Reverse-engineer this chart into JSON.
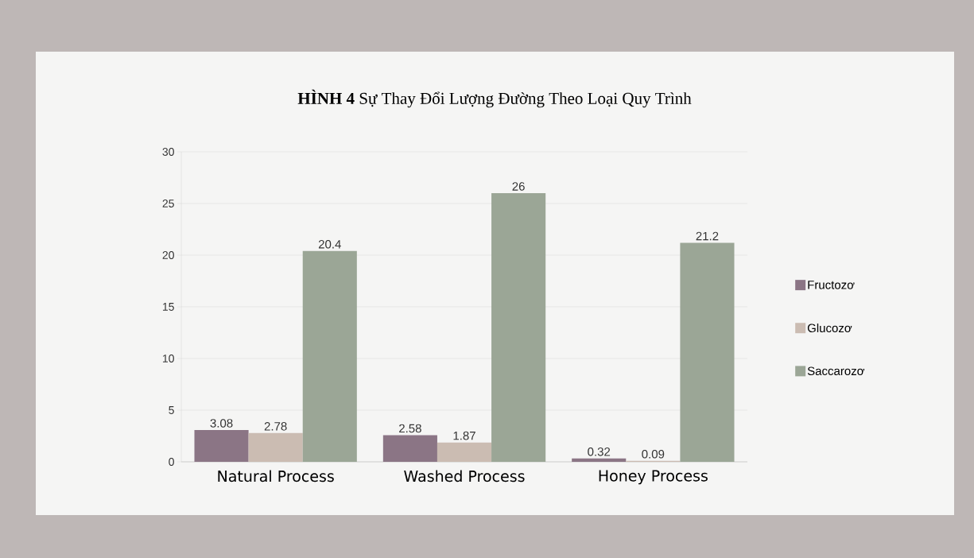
{
  "chart_data": {
    "type": "bar",
    "title": "**HÌNH 4**  Sự Thay Đổi Lượng Đường Theo Loại Quy Trình",
    "categories": [
      "Natural Process",
      "Washed Process",
      "Honey Process"
    ],
    "series": [
      {
        "name": "Fructozơ",
        "color": "#8b7585",
        "values": [
          3.08,
          2.58,
          0.32
        ]
      },
      {
        "name": "Glucozơ",
        "color": "#cbbcb2",
        "values": [
          2.78,
          1.87,
          0.09
        ]
      },
      {
        "name": "Saccarozơ",
        "color": "#9ba696",
        "values": [
          20.4,
          26,
          21.2
        ]
      }
    ],
    "ylim": [
      0,
      30
    ],
    "yticks": [
      0,
      5,
      10,
      15,
      20,
      25,
      30
    ],
    "grid": "y",
    "legend": "right",
    "data_labels": true
  }
}
